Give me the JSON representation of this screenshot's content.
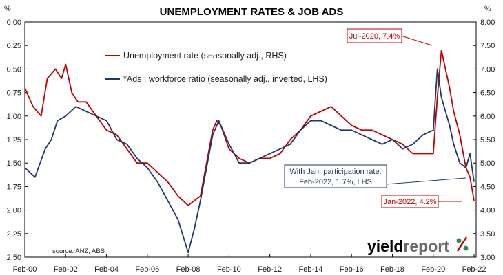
{
  "chart_data": {
    "type": "line",
    "title": "UNEMPLOYMENT RATES & JOB ADS",
    "left_axis": {
      "unit": "%",
      "range": [
        0,
        2.5
      ],
      "inverted": true,
      "ticks": [
        "0.00",
        "0.25",
        "0.50",
        "0.75",
        "1.00",
        "1.25",
        "1.50",
        "1.75",
        "2.00",
        "2.25",
        "2.50"
      ]
    },
    "right_axis": {
      "unit": "%",
      "range": [
        3.0,
        8.0
      ],
      "ticks": [
        "8.00",
        "7.50",
        "7.00",
        "6.50",
        "6.00",
        "5.50",
        "5.00",
        "4.50",
        "4.00",
        "3.50",
        "3.00"
      ]
    },
    "x_range": [
      2000.0,
      2022.1
    ],
    "x_ticks": [
      "Feb-00",
      "Feb-02",
      "Feb-04",
      "Feb-06",
      "Feb-08",
      "Feb-10",
      "Feb-12",
      "Feb-14",
      "Feb-16",
      "Feb-18",
      "Feb-20",
      "Feb-22"
    ],
    "series": [
      {
        "name": "Unemployment rate (seasonally adj., RHS)",
        "color": "#c00000",
        "axis": "right",
        "x": [
          2000.0,
          2000.4,
          2000.8,
          2001.1,
          2001.5,
          2001.8,
          2002.0,
          2002.3,
          2002.6,
          2003.0,
          2003.5,
          2004.0,
          2004.5,
          2005.0,
          2005.5,
          2006.0,
          2006.5,
          2007.0,
          2007.5,
          2008.0,
          2008.3,
          2008.6,
          2008.9,
          2009.2,
          2009.4,
          2009.6,
          2010.0,
          2010.5,
          2011.0,
          2011.5,
          2012.0,
          2012.5,
          2013.0,
          2013.5,
          2014.0,
          2014.5,
          2015.0,
          2015.5,
          2016.0,
          2016.5,
          2017.0,
          2017.5,
          2018.0,
          2018.5,
          2019.0,
          2019.5,
          2020.0,
          2020.2,
          2020.4,
          2020.6,
          2020.8,
          2021.0,
          2021.3,
          2021.6,
          2021.8,
          2022.0
        ],
        "values": [
          6.6,
          6.2,
          6.0,
          6.8,
          7.0,
          6.8,
          7.1,
          6.5,
          6.3,
          6.3,
          6.0,
          5.7,
          5.6,
          5.3,
          5.0,
          5.0,
          4.8,
          4.6,
          4.3,
          4.1,
          4.2,
          4.3,
          5.0,
          5.7,
          5.9,
          5.8,
          5.3,
          5.1,
          5.0,
          5.1,
          5.1,
          5.2,
          5.5,
          5.7,
          6.0,
          6.1,
          6.2,
          6.0,
          5.8,
          5.7,
          5.7,
          5.6,
          5.5,
          5.4,
          5.2,
          5.2,
          5.2,
          6.4,
          7.4,
          7.0,
          6.6,
          6.1,
          5.6,
          4.9,
          4.7,
          4.2
        ]
      },
      {
        "name": "*Ads : workforce ratio (seasonally adj., inverted, LHS)",
        "color": "#1f3864",
        "axis": "left",
        "x": [
          2000.0,
          2000.5,
          2001.0,
          2001.3,
          2001.6,
          2002.0,
          2002.5,
          2003.0,
          2003.5,
          2004.0,
          2004.5,
          2005.0,
          2005.5,
          2006.0,
          2006.5,
          2007.0,
          2007.5,
          2008.0,
          2008.3,
          2008.6,
          2008.9,
          2009.2,
          2009.5,
          2010.0,
          2010.5,
          2011.0,
          2011.5,
          2012.0,
          2012.5,
          2013.0,
          2013.5,
          2014.0,
          2014.5,
          2015.0,
          2015.5,
          2016.0,
          2016.5,
          2017.0,
          2017.5,
          2018.0,
          2018.5,
          2019.0,
          2019.5,
          2020.0,
          2020.2,
          2020.4,
          2020.6,
          2020.8,
          2021.0,
          2021.3,
          2021.6,
          2021.8,
          2022.0
        ],
        "values": [
          1.55,
          1.65,
          1.35,
          1.25,
          1.05,
          1.0,
          0.9,
          0.95,
          1.0,
          1.05,
          1.25,
          1.3,
          1.45,
          1.55,
          1.7,
          1.9,
          2.1,
          2.45,
          2.2,
          1.9,
          1.55,
          1.2,
          1.05,
          1.3,
          1.5,
          1.5,
          1.45,
          1.4,
          1.35,
          1.3,
          1.15,
          1.05,
          1.05,
          1.1,
          1.15,
          1.15,
          1.2,
          1.25,
          1.3,
          1.25,
          1.35,
          1.3,
          1.2,
          1.15,
          0.5,
          0.8,
          0.95,
          1.1,
          1.3,
          1.5,
          1.55,
          1.4,
          1.7
        ]
      }
    ],
    "annotations": {
      "jul2020": "Jul-2020, 7.4%",
      "jan2022": "Jan-2022, 4.2%",
      "feb2022_line1": "With Jan. participation rate:",
      "feb2022_line2": "Feb-2022, 1.7%, LHS"
    },
    "source": "source: ANZ, ABS",
    "grid": false,
    "legend_position": "top-left"
  },
  "brand": {
    "part1": "yield",
    "part2": "report",
    "symbol": "%",
    "color_dark": "#000000",
    "color_grey": "#6b6b6b",
    "color_red": "#c00000",
    "color_green": "#2e8b57"
  }
}
